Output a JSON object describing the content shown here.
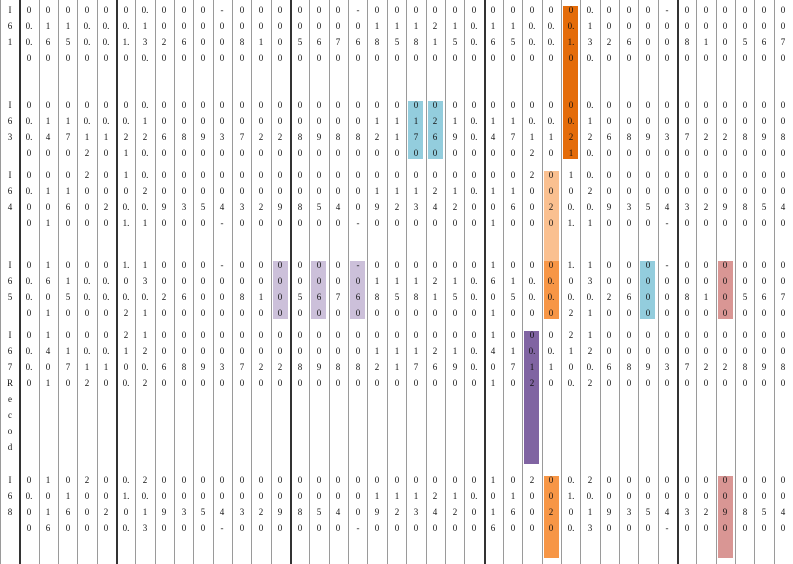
{
  "colors": {
    "orange_dark": "#e46c0a",
    "orange_mid": "#f79646",
    "orange_light": "#fac090",
    "blue": "#93cddd",
    "lavender": "#ccc0da",
    "purple": "#8064a2",
    "rose": "#d99694",
    "background": "#ffffff",
    "text": "#111111",
    "grid": "#9a9a9a"
  },
  "table": {
    "row_labels": [
      [
        "I",
        "6",
        "1"
      ],
      [
        "I",
        "6",
        "3"
      ],
      [
        "I",
        "6",
        "4"
      ],
      [
        "I",
        "6",
        "5"
      ],
      [
        "I",
        "6",
        "7",
        "R",
        "e",
        "c",
        "o",
        "d"
      ],
      [
        "I",
        "6",
        "8"
      ]
    ],
    "columns": [
      [
        "0",
        "0.",
        "0.",
        "0",
        "0.",
        "0.",
        "0",
        "0.",
        "0"
      ],
      [
        "0",
        "1",
        "6",
        "0",
        "1",
        "4",
        "0",
        "1"
      ],
      [
        "0",
        "1",
        "5",
        "0",
        "1",
        "7",
        "0",
        "1",
        "6"
      ],
      [
        "0",
        "0.",
        "0.",
        "0",
        "0.",
        "1",
        "2",
        "0",
        "0"
      ],
      [
        "0",
        "0.",
        "0.",
        "0",
        "0.",
        "1",
        "0",
        "0",
        "2"
      ],
      [
        "0",
        "0.",
        "1.",
        "0",
        "0.",
        "2",
        "1"
      ],
      [
        "0.",
        "1",
        "3",
        "0.",
        "1",
        "2",
        "0.",
        "2"
      ],
      [
        "0",
        "0",
        "2",
        "0",
        "0",
        "6",
        "0",
        "0",
        "9"
      ],
      [
        "0",
        "0",
        "6",
        "0",
        "0",
        "8",
        "0",
        "0",
        "3"
      ],
      [
        "0",
        "0",
        "0",
        "0",
        "0",
        "9",
        "0",
        "0",
        "5"
      ],
      [
        "-",
        "0",
        "0",
        "0",
        "0",
        "3",
        "0",
        "0",
        "4"
      ],
      [
        "0",
        "0",
        "8",
        "0",
        "0",
        "7",
        "0",
        "0",
        "3"
      ],
      [
        "0",
        "0",
        "1",
        "0",
        "0",
        "2",
        "0",
        "0",
        "2"
      ],
      [
        "0",
        "0",
        "0",
        "0",
        "0",
        "2",
        "0",
        "0",
        "9"
      ],
      [
        "0",
        "0",
        "5",
        "0",
        "0",
        "8",
        "0",
        "0",
        "8"
      ],
      [
        "0",
        "0",
        "6",
        "0",
        "0",
        "9",
        "0",
        "0",
        "5"
      ],
      [
        "0",
        "0",
        "7",
        "0",
        "0",
        "8",
        "0",
        "0",
        "4"
      ],
      [
        "-",
        "0",
        "6",
        "0",
        "0",
        "8",
        "0",
        "0",
        "0"
      ],
      [
        "0",
        "1",
        "8",
        "0",
        "1",
        "2",
        "0",
        "1",
        "9"
      ],
      [
        "0",
        "1",
        "5",
        "0",
        "1",
        "1",
        "0",
        "1",
        "2"
      ],
      [
        "0",
        "1",
        "8",
        "0",
        "1",
        "7",
        "0",
        "1",
        "3"
      ],
      [
        "0",
        "2",
        "1",
        "0",
        "2",
        "6",
        "0",
        "2",
        "4"
      ],
      [
        "0",
        "1",
        "5",
        "0",
        "1",
        "9",
        "0",
        "1",
        "2"
      ]
    ],
    "highlights": [
      {
        "col": 29,
        "row_from": 0,
        "row_to": 1,
        "color": "orange_dark"
      },
      {
        "col": 21,
        "row_from": 1,
        "row_to": 1,
        "color": "blue"
      },
      {
        "col": 22,
        "row_from": 1,
        "row_to": 1,
        "color": "blue"
      },
      {
        "col": 28,
        "row_from": 2,
        "row_to": 3,
        "color": "orange_light"
      },
      {
        "col": 14,
        "row_from": 3,
        "row_to": 3,
        "color": "lavender"
      },
      {
        "col": 16,
        "row_from": 3,
        "row_to": 3,
        "color": "lavender"
      },
      {
        "col": 18,
        "row_from": 3,
        "row_to": 3,
        "color": "lavender"
      },
      {
        "col": 33,
        "row_from": 3,
        "row_to": 3,
        "color": "blue"
      },
      {
        "col": 28,
        "row_from": 3,
        "row_to": 3,
        "color": "orange_mid"
      },
      {
        "col": 37,
        "row_from": 3,
        "row_to": 3,
        "color": "rose"
      },
      {
        "col": 27,
        "row_from": 4,
        "row_to": 4,
        "color": "purple"
      },
      {
        "col": 28,
        "row_from": 5,
        "row_to": 5,
        "color": "orange_mid"
      },
      {
        "col": 37,
        "row_from": 5,
        "row_to": 5,
        "color": "rose"
      }
    ]
  }
}
